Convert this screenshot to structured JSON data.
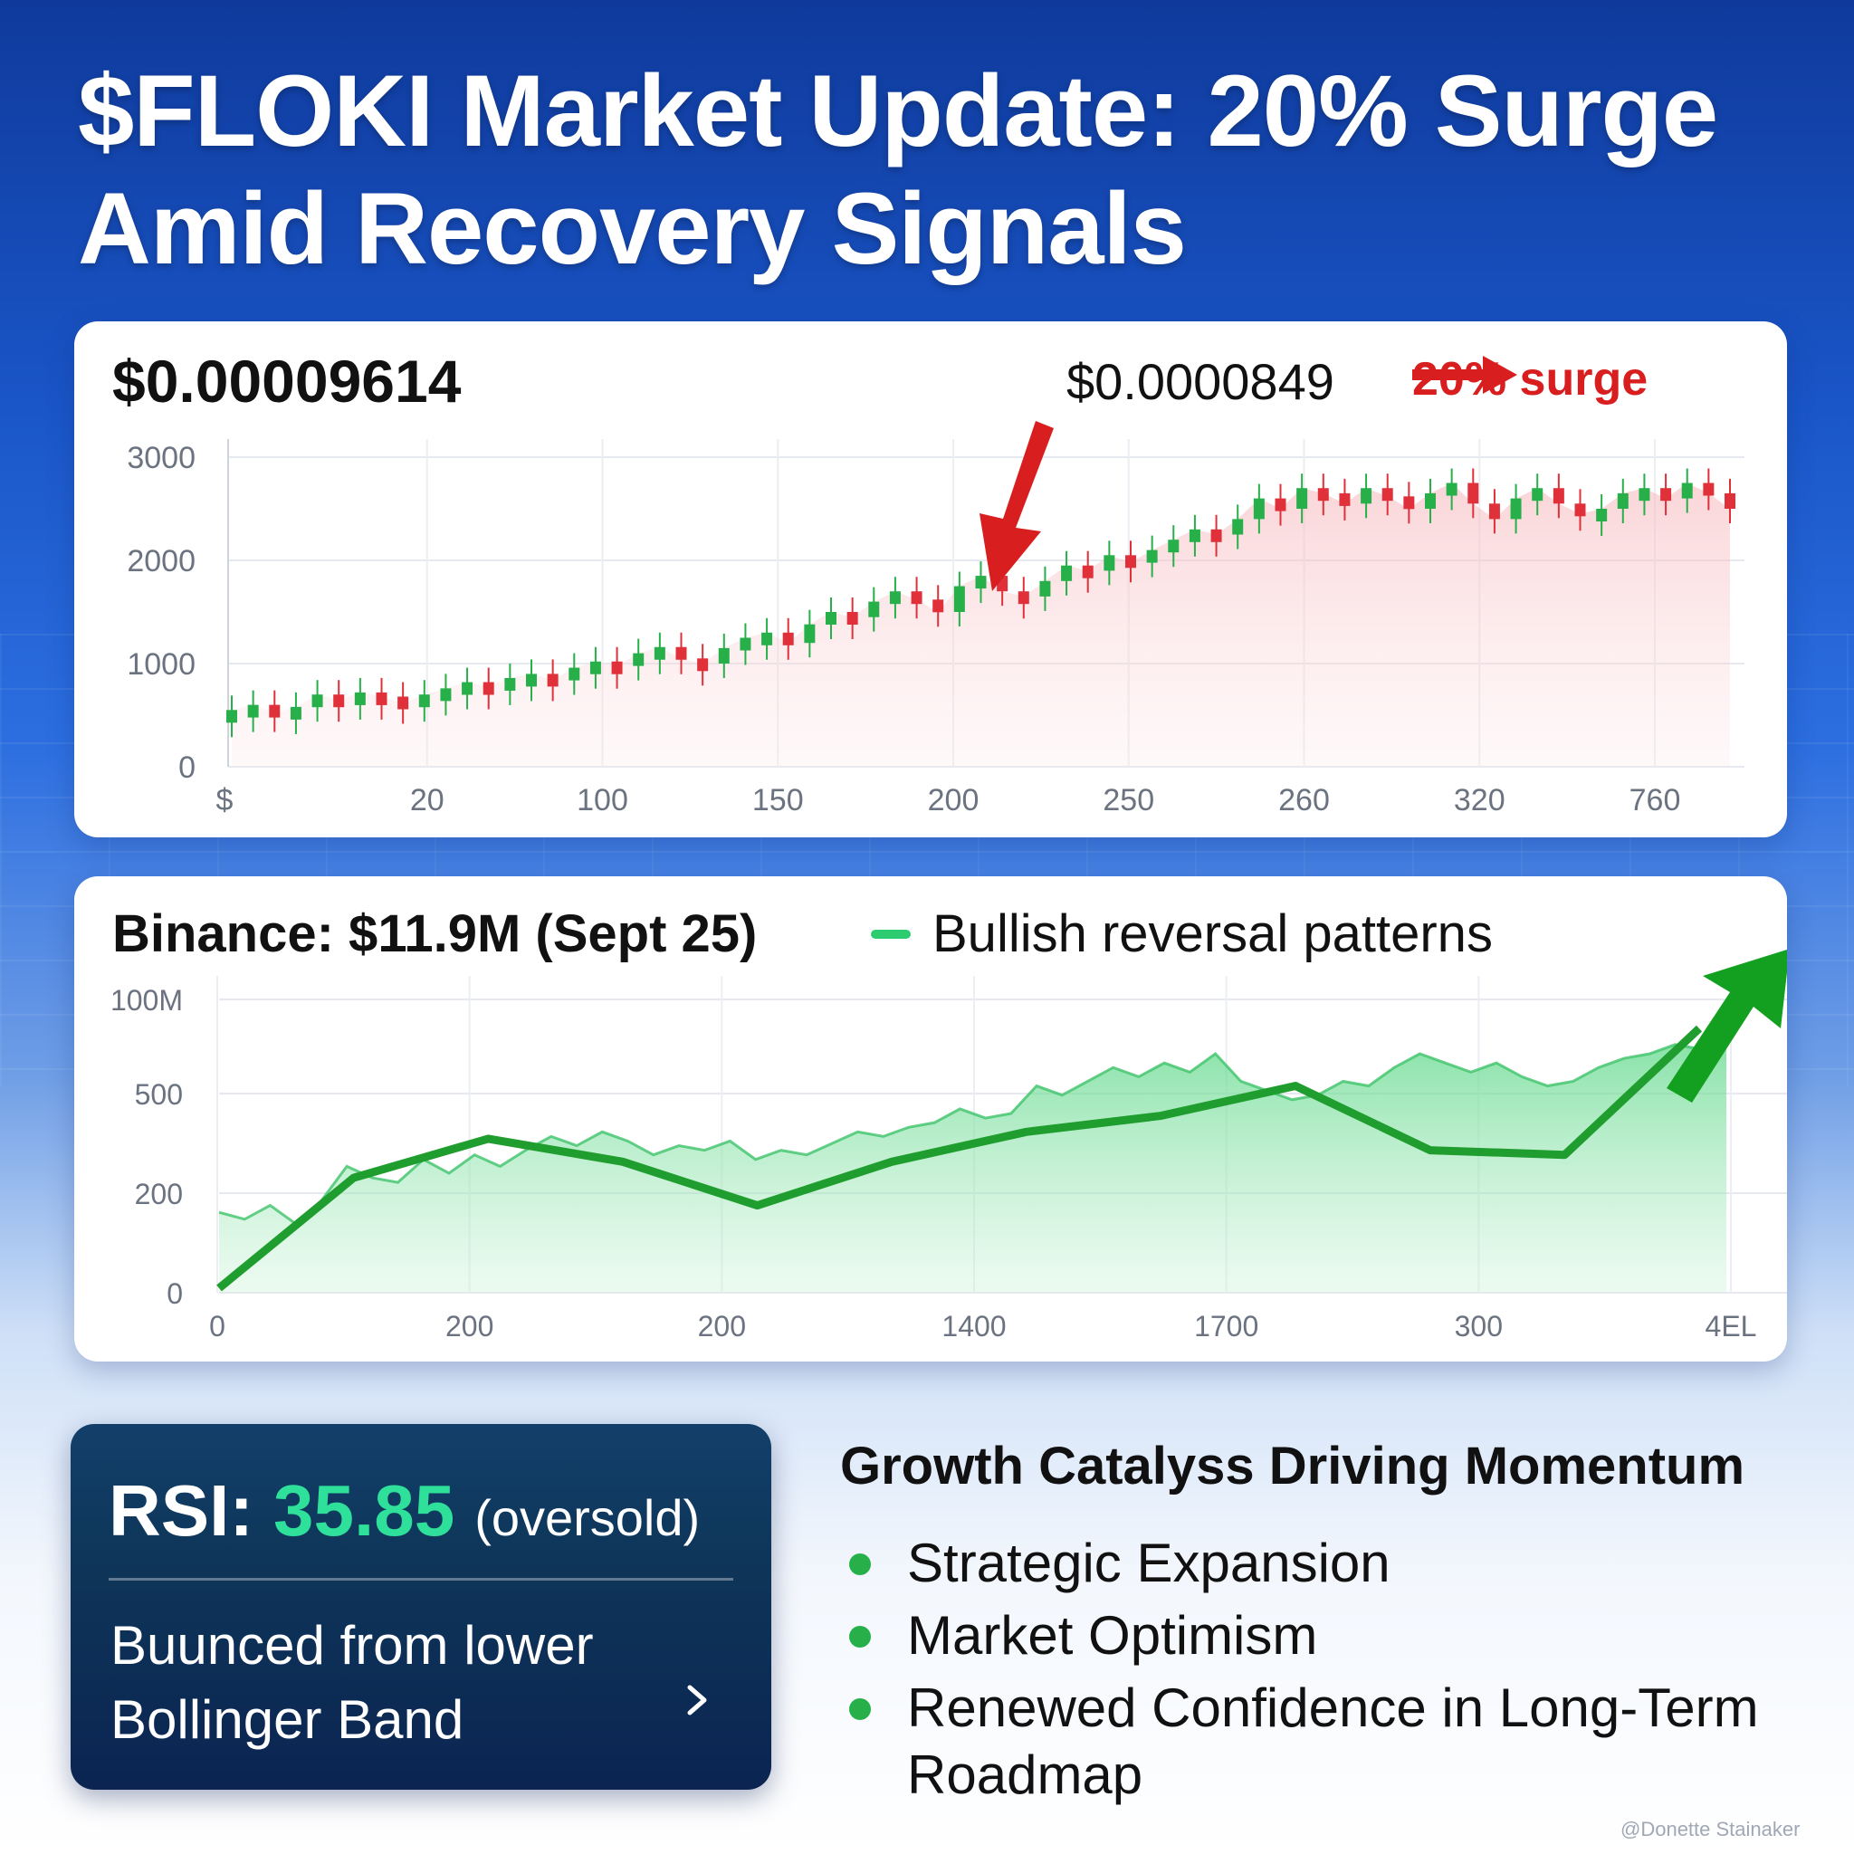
{
  "title": "$FLOKI Market Update: 20% Surge Amid Recovery Signals",
  "colors": {
    "up": "#27b04a",
    "down": "#e0313a",
    "accent_red": "#d81e1e",
    "volume_green": "#1f9d2e",
    "rsi_value": "#2fe09a"
  },
  "price_card": {
    "current_price": "$0.00009614",
    "previous_price": "$0.0000849",
    "surge_label": "20% surge",
    "surge_icon": "right-arrow-icon",
    "pointer_icon": "down-arrow-icon"
  },
  "volume_card": {
    "title": "Binance: $11.9M (Sept 25)",
    "legend_label": "Bullish reversal patterns",
    "trend_icon": "up-arrow-icon"
  },
  "rsi": {
    "label": "RSI:",
    "value": "35.85",
    "state": "(oversold)",
    "description": "Buunced from lower Bollinger Band",
    "chevron_icon": "chevron-right-icon"
  },
  "catalysts": {
    "title": "Growth Catalyss Driving Momentum",
    "items": [
      "Strategic Expansion",
      "Market Optimism",
      "Renewed Confidence in Long-Term Roadmap"
    ]
  },
  "watermark": "@Donette Stainaker",
  "chart_data": [
    {
      "type": "candlestick",
      "title": "",
      "y_ticks": [
        "0",
        "1000",
        "2000",
        "3000"
      ],
      "ylim": [
        0,
        3000
      ],
      "x_ticks": [
        "$",
        "20",
        "100",
        "150",
        "200",
        "250",
        "260",
        "320",
        "760"
      ],
      "grid": true,
      "series": [
        {
          "values": [
            550,
            600,
            520,
            580,
            700,
            650,
            720,
            680,
            620,
            700,
            760,
            820,
            780,
            860,
            900,
            840,
            960,
            1020,
            980,
            1100,
            1160,
            1050,
            1000,
            1150,
            1250,
            1300,
            1200,
            1380,
            1500,
            1450,
            1600,
            1700,
            1620,
            1500,
            1750,
            1850,
            1700,
            1650,
            1800,
            1950,
            1900,
            2050,
            1980,
            2100,
            2200,
            2300,
            2250,
            2400,
            2600,
            2500,
            2700,
            2650,
            2550,
            2700,
            2620,
            2500,
            2650,
            2750,
            2550,
            2400,
            2600,
            2700,
            2550,
            2450,
            2500,
            2650,
            2700,
            2600,
            2750,
            2650,
            2500
          ]
        }
      ]
    },
    {
      "type": "area",
      "title": "",
      "y_ticks": [
        "0",
        "200",
        "500",
        "100M"
      ],
      "x_ticks": [
        "0",
        "200",
        "200",
        "1400",
        "1700",
        "300",
        "4EL"
      ],
      "grid": true,
      "series": [
        {
          "values": [
            35,
            32,
            38,
            30,
            40,
            55,
            50,
            48,
            58,
            52,
            60,
            55,
            62,
            68,
            64,
            70,
            66,
            60,
            64,
            62,
            66,
            58,
            62,
            60,
            65,
            70,
            68,
            72,
            74,
            80,
            76,
            78,
            90,
            86,
            92,
            98,
            94,
            100,
            96,
            104,
            92,
            88,
            84,
            86,
            92,
            90,
            98,
            104,
            100,
            96,
            100,
            94,
            90,
            92,
            98,
            102,
            104,
            108,
            106,
            110
          ]
        },
        {
          "name": "Bullish reversal patterns",
          "values": [
            2,
            50,
            67,
            57,
            38,
            57,
            70,
            77,
            90,
            62,
            60,
            115
          ]
        }
      ]
    }
  ]
}
